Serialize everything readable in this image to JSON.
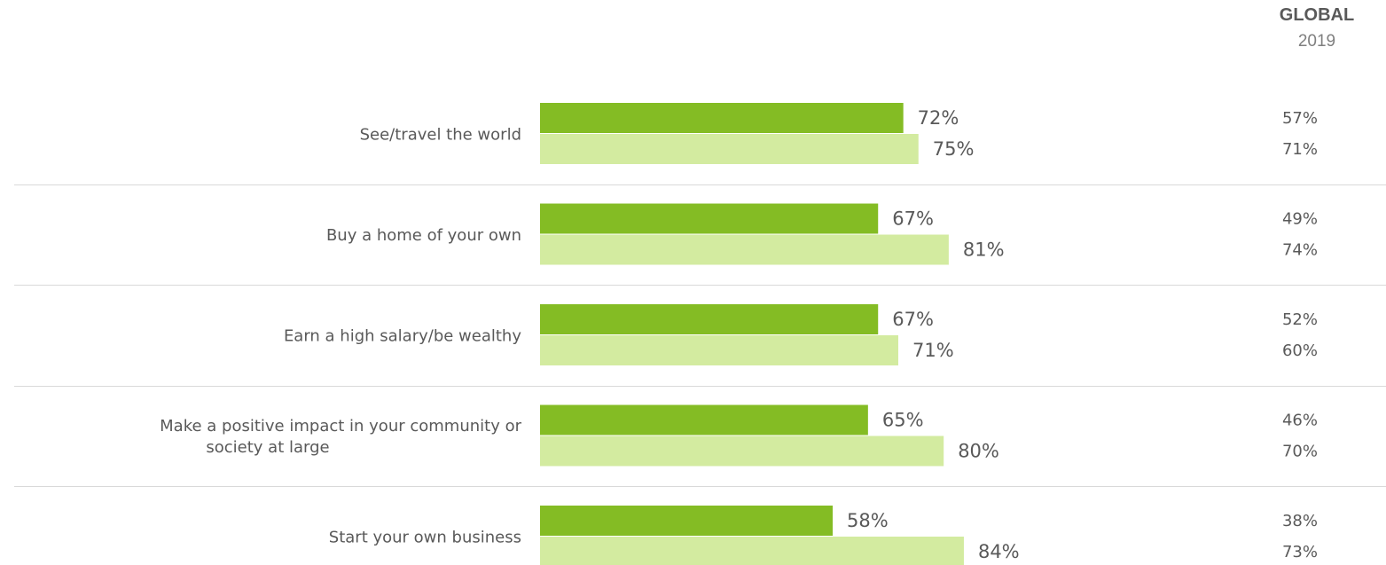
{
  "global_header": {
    "title": "GLOBAL",
    "year": "2019"
  },
  "chart_data": {
    "type": "bar",
    "orientation": "horizontal",
    "categories": [
      "See/travel the world",
      "Buy a home of your own",
      "Earn a high salary/be wealthy",
      "Make a positive impact in your community or society at large",
      "Start your own business"
    ],
    "series": [
      {
        "values": [
          72,
          67,
          67,
          65,
          58
        ]
      },
      {
        "values": [
          75,
          81,
          71,
          80,
          84
        ]
      }
    ],
    "value_suffix": "%",
    "global_2019": [
      [
        57,
        71
      ],
      [
        49,
        74
      ],
      [
        52,
        60
      ],
      [
        46,
        70
      ],
      [
        38,
        73
      ]
    ],
    "colors": {
      "series1": "#84BC24",
      "series2": "#D3EBA0"
    },
    "xlim": [
      0,
      100
    ],
    "grid": false,
    "legend": "none"
  }
}
